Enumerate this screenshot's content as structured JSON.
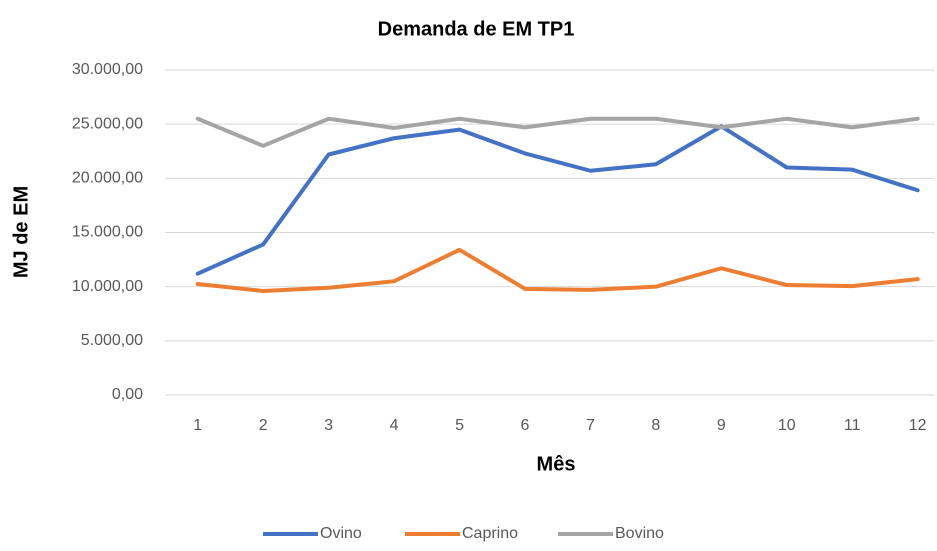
{
  "chart_data": {
    "type": "line",
    "title": "Demanda de EM TP1",
    "x_label": "Mês",
    "y_label": "MJ de EM",
    "categories": [
      "1",
      "2",
      "3",
      "4",
      "5",
      "6",
      "7",
      "8",
      "9",
      "10",
      "11",
      "12"
    ],
    "series": [
      {
        "name": "Ovino",
        "color": "#4472c4",
        "values": [
          11200,
          13900,
          22200,
          23700,
          24500,
          22300,
          20700,
          21300,
          24800,
          21000,
          20800,
          18900
        ]
      },
      {
        "name": "Caprino",
        "color": "#ed7d31",
        "values": [
          10250,
          9600,
          9900,
          10500,
          13400,
          9800,
          9700,
          10000,
          11700,
          10150,
          10050,
          10700
        ]
      },
      {
        "name": "Bovino",
        "color": "#a5a5a5",
        "values": [
          25500,
          23000,
          25500,
          24650,
          25500,
          24700,
          25500,
          25500,
          24700,
          25500,
          24700,
          25500
        ]
      }
    ],
    "ylim": [
      0,
      30000
    ],
    "yticks": [
      {
        "value": 0,
        "label": "0,00"
      },
      {
        "value": 5000,
        "label": "5.000,00"
      },
      {
        "value": 10000,
        "label": "10.000,00"
      },
      {
        "value": 15000,
        "label": "15.000,00"
      },
      {
        "value": 20000,
        "label": "20.000,00"
      },
      {
        "value": 25000,
        "label": "25.000,00"
      },
      {
        "value": 30000,
        "label": "30.000,00"
      }
    ],
    "grid": true,
    "legend": "bottom"
  }
}
